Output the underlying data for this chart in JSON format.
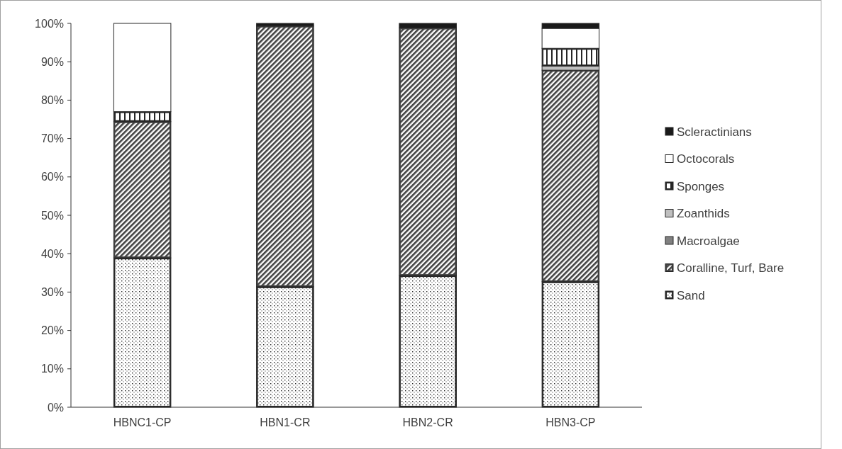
{
  "chart_data": {
    "type": "bar",
    "stacked": true,
    "categories": [
      "HBNC1-CP",
      "HBN1-CR",
      "HBN2-CR",
      "HBN3-CP"
    ],
    "series": [
      {
        "name": "Sand",
        "color": "#262626",
        "values": [
          38.9,
          31.4,
          34.3,
          32.7
        ]
      },
      {
        "name": "Coralline, Turf, Bare",
        "color": "#404040",
        "values": [
          35.5,
          67.9,
          64.5,
          55.1
        ]
      },
      {
        "name": "Macroalgae",
        "color": "#808080",
        "values": [
          0,
          0,
          0,
          0
        ]
      },
      {
        "name": "Zoanthids",
        "color": "#bfbfbf",
        "values": [
          0,
          0,
          0,
          1.1
        ]
      },
      {
        "name": "Sponges",
        "color": "#262626",
        "values": [
          2.6,
          0,
          0,
          4.6
        ]
      },
      {
        "name": "Octocorals",
        "color": "#ffffff",
        "values": [
          23.0,
          0,
          0,
          5.2
        ]
      },
      {
        "name": "Scleractinians",
        "color": "#1a1a1a",
        "values": [
          0,
          0.7,
          1.2,
          1.3
        ]
      }
    ],
    "ylim": [
      0,
      100
    ],
    "yticks": [
      {
        "value": 0,
        "label": "0%"
      },
      {
        "value": 10,
        "label": "10%"
      },
      {
        "value": 20,
        "label": "20%"
      },
      {
        "value": 30,
        "label": "30%"
      },
      {
        "value": 40,
        "label": "40%"
      },
      {
        "value": 50,
        "label": "50%"
      },
      {
        "value": 60,
        "label": "60%"
      },
      {
        "value": 70,
        "label": "70%"
      },
      {
        "value": 80,
        "label": "80%"
      },
      {
        "value": 90,
        "label": "90%"
      },
      {
        "value": 100,
        "label": "100%"
      }
    ],
    "legend": "right"
  }
}
